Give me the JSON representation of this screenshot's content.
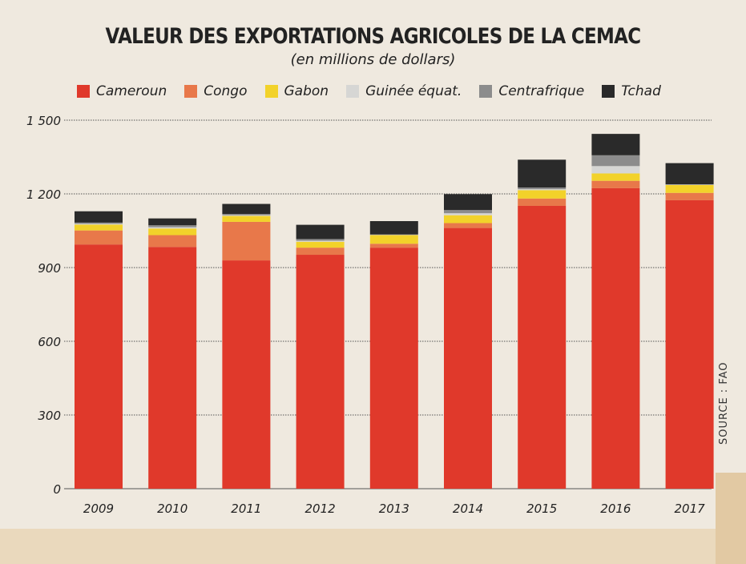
{
  "chart_data": {
    "type": "bar",
    "stacked": true,
    "title": "VALEUR DES EXPORTATIONS AGRICOLES DE LA CEMAC",
    "subtitle": "(en millions de dollars)",
    "source": "SOURCE : FAO",
    "categories": [
      "2009",
      "2010",
      "2011",
      "2012",
      "2013",
      "2014",
      "2015",
      "2016",
      "2017"
    ],
    "ylim": [
      0,
      1500
    ],
    "yticks": [
      0,
      300,
      600,
      900,
      1200,
      1500
    ],
    "ytick_labels": [
      "0",
      "300",
      "600",
      "900",
      "1 200",
      "1 500"
    ],
    "grid": true,
    "legend_position": "top",
    "series": [
      {
        "name": "Cameroun",
        "color": "#e0392b",
        "values": [
          994,
          984,
          929,
          952,
          981,
          1061,
          1151,
          1223,
          1174
        ]
      },
      {
        "name": "Congo",
        "color": "#e8784a",
        "values": [
          57,
          48,
          157,
          29,
          16,
          20,
          30,
          30,
          30
        ]
      },
      {
        "name": "Gabon",
        "color": "#f2d22a",
        "values": [
          24,
          27,
          24,
          24,
          35,
          32,
          34,
          30,
          32
        ]
      },
      {
        "name": "Guinée équat.",
        "color": "#d6d6d4",
        "values": [
          3,
          5,
          3,
          4,
          1,
          8,
          4,
          30,
          1
        ]
      },
      {
        "name": "Centrafrique",
        "color": "#8c8c8c",
        "values": [
          5,
          8,
          5,
          7,
          2,
          13,
          7,
          44,
          2
        ]
      },
      {
        "name": "Tchad",
        "color": "#2a2a2a",
        "values": [
          46,
          28,
          41,
          58,
          54,
          65,
          113,
          87,
          86
        ]
      }
    ]
  }
}
